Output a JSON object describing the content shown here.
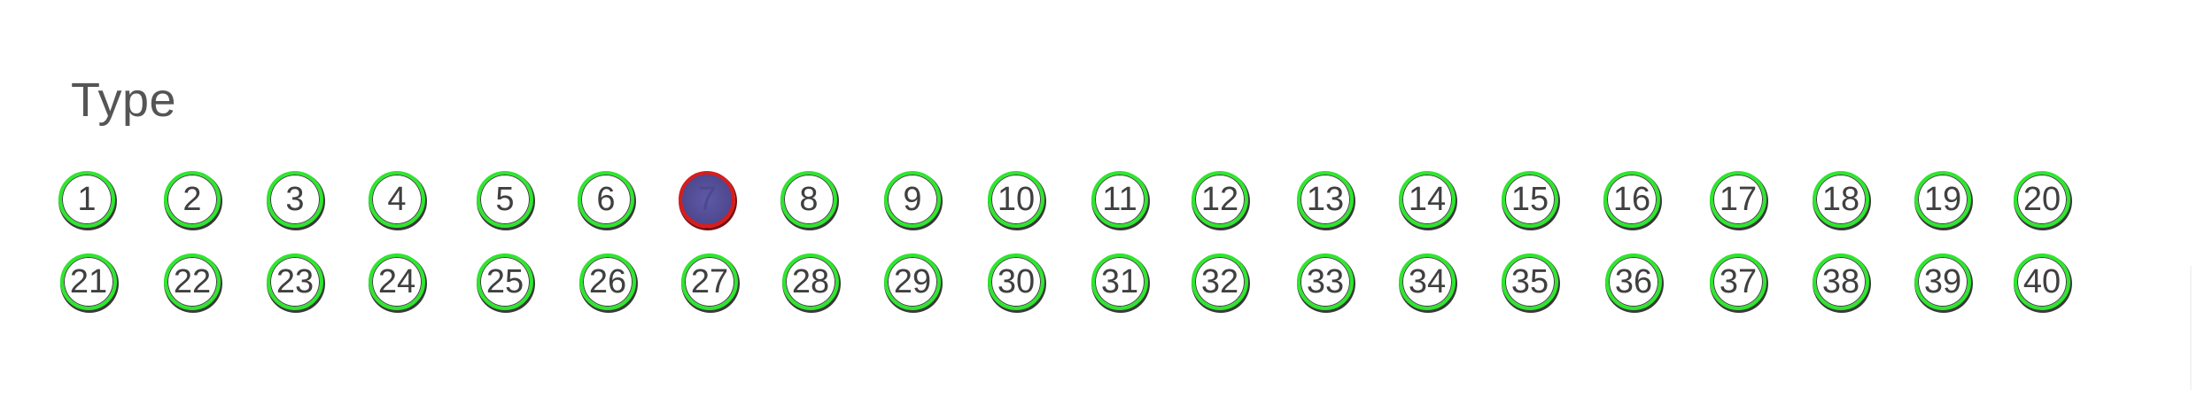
{
  "section": {
    "title": "Type"
  },
  "options_row1": [
    "1",
    "2",
    "3",
    "4",
    "5",
    "6",
    "7",
    "8",
    "9",
    "10",
    "11",
    "12",
    "13",
    "14",
    "15",
    "16",
    "17",
    "18",
    "19",
    "20"
  ],
  "options_row2": [
    "21",
    "22",
    "23",
    "24",
    "25",
    "26",
    "27",
    "28",
    "29",
    "30",
    "31",
    "32",
    "33",
    "34",
    "35",
    "36",
    "37",
    "38",
    "39",
    "40"
  ],
  "selected_option": "7",
  "colors": {
    "ring": "#2ee62e",
    "selected_ring": "#d81c1c",
    "selected_fill": "#5f5aa6",
    "text": "#404040",
    "title_text": "#555555"
  }
}
